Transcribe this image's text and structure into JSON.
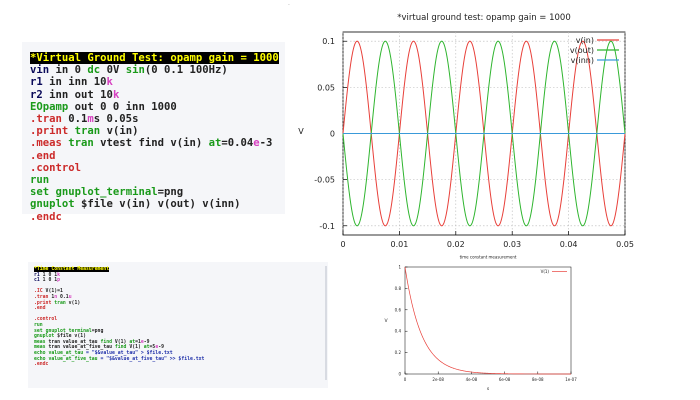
{
  "decor": {
    "dot": "·"
  },
  "code_block_1": {
    "lines": [
      [
        {
          "t": "*Virtual Ground Test: opamp gain = 1000",
          "c": "hl"
        }
      ],
      [
        {
          "t": "vin",
          "c": "id"
        },
        {
          "t": " in 0 ",
          "c": "txt"
        },
        {
          "t": "dc",
          "c": "kw"
        },
        {
          "t": " 0V ",
          "c": "txt"
        },
        {
          "t": "sin",
          "c": "kw"
        },
        {
          "t": "(0 0.1 100Hz)",
          "c": "txt"
        }
      ],
      [
        {
          "t": "r1",
          "c": "id"
        },
        {
          "t": " in inn 10",
          "c": "txt"
        },
        {
          "t": "k",
          "c": "mag"
        }
      ],
      [
        {
          "t": "r2",
          "c": "id"
        },
        {
          "t": " inn out 10",
          "c": "txt"
        },
        {
          "t": "k",
          "c": "mag"
        }
      ],
      [
        {
          "t": "EOpamp",
          "c": "kw"
        },
        {
          "t": " out 0 0 inn 1000",
          "c": "txt"
        }
      ],
      [
        {
          "t": ".tran",
          "c": "red"
        },
        {
          "t": " 0.1",
          "c": "txt"
        },
        {
          "t": "m",
          "c": "mag"
        },
        {
          "t": "s 0.05s",
          "c": "txt"
        }
      ],
      [
        {
          "t": ".print",
          "c": "red"
        },
        {
          "t": " ",
          "c": "txt"
        },
        {
          "t": "tran",
          "c": "kw"
        },
        {
          "t": " v(in)",
          "c": "txt"
        }
      ],
      [
        {
          "t": ".meas",
          "c": "red"
        },
        {
          "t": " ",
          "c": "txt"
        },
        {
          "t": "tran",
          "c": "kw"
        },
        {
          "t": " vtest find v(in) ",
          "c": "txt"
        },
        {
          "t": "at",
          "c": "kw"
        },
        {
          "t": "=0.04",
          "c": "txt"
        },
        {
          "t": "e",
          "c": "mag"
        },
        {
          "t": "-3",
          "c": "txt"
        }
      ],
      [
        {
          "t": ".end",
          "c": "red"
        }
      ],
      [
        {
          "t": ".control",
          "c": "red"
        }
      ],
      [
        {
          "t": "run",
          "c": "kw"
        }
      ],
      [
        {
          "t": "set",
          "c": "kw"
        },
        {
          "t": " ",
          "c": "txt"
        },
        {
          "t": "gnuplot_terminal",
          "c": "kw"
        },
        {
          "t": "=png",
          "c": "txt"
        }
      ],
      [
        {
          "t": "gnuplot",
          "c": "kw"
        },
        {
          "t": " $file v(in) v(out) v(inn)",
          "c": "txt"
        }
      ],
      [
        {
          "t": ".endc",
          "c": "red"
        }
      ]
    ]
  },
  "code_block_2": {
    "lines": [
      [
        {
          "t": "*Time Constant Measurement",
          "c": "hl"
        }
      ],
      [
        {
          "t": "r1",
          "c": "id"
        },
        {
          "t": " 1 0 1",
          "c": "txt"
        },
        {
          "t": "k",
          "c": "mag"
        }
      ],
      [
        {
          "t": "c1",
          "c": "id"
        },
        {
          "t": " 1 0 1",
          "c": "txt"
        },
        {
          "t": "p",
          "c": "mag"
        }
      ],
      [
        {
          "t": " ",
          "c": "txt"
        }
      ],
      [
        {
          "t": ".IC",
          "c": "red"
        },
        {
          "t": " V(1)=1",
          "c": "txt"
        }
      ],
      [
        {
          "t": ".tran",
          "c": "red"
        },
        {
          "t": " 1",
          "c": "txt"
        },
        {
          "t": "n",
          "c": "mag"
        },
        {
          "t": " 0.1",
          "c": "txt"
        },
        {
          "t": "u",
          "c": "mag"
        }
      ],
      [
        {
          "t": ".print",
          "c": "red"
        },
        {
          "t": " ",
          "c": "txt"
        },
        {
          "t": "tran",
          "c": "kw"
        },
        {
          "t": " v(1)",
          "c": "txt"
        }
      ],
      [
        {
          "t": ".end",
          "c": "red"
        }
      ],
      [
        {
          "t": " ",
          "c": "txt"
        }
      ],
      [
        {
          "t": ".control",
          "c": "red"
        }
      ],
      [
        {
          "t": "run",
          "c": "kw"
        }
      ],
      [
        {
          "t": "set",
          "c": "kw"
        },
        {
          "t": " ",
          "c": "txt"
        },
        {
          "t": "gnuplot_terminal",
          "c": "kw"
        },
        {
          "t": "=png",
          "c": "txt"
        }
      ],
      [
        {
          "t": "gnuplot",
          "c": "kw"
        },
        {
          "t": " $file v(1)",
          "c": "txt"
        }
      ],
      [
        {
          "t": "meas",
          "c": "kw"
        },
        {
          "t": " tran value_at_tau ",
          "c": "txt"
        },
        {
          "t": "find",
          "c": "kw"
        },
        {
          "t": " V(1) ",
          "c": "txt"
        },
        {
          "t": "at",
          "c": "kw"
        },
        {
          "t": "=1",
          "c": "txt"
        },
        {
          "t": "e",
          "c": "mag"
        },
        {
          "t": "-9",
          "c": "txt"
        }
      ],
      [
        {
          "t": "meas",
          "c": "kw"
        },
        {
          "t": " tran value_at_five_tau ",
          "c": "txt"
        },
        {
          "t": "find",
          "c": "kw"
        },
        {
          "t": " V(1) ",
          "c": "txt"
        },
        {
          "t": "at",
          "c": "kw"
        },
        {
          "t": "=5",
          "c": "txt"
        },
        {
          "t": "e",
          "c": "mag"
        },
        {
          "t": "-9",
          "c": "txt"
        }
      ],
      [
        {
          "t": "echo",
          "c": "kw"
        },
        {
          "t": " ",
          "c": "txt"
        },
        {
          "t": "value_at_tau",
          "c": "kw"
        },
        {
          "t": " = \"$&value_at_tau\" > $file.txt",
          "c": "blue"
        }
      ],
      [
        {
          "t": "echo",
          "c": "kw"
        },
        {
          "t": " ",
          "c": "txt"
        },
        {
          "t": "value_at_five_tau",
          "c": "kw"
        },
        {
          "t": " = \"$&value_at_five_tau\" >> $file.txt",
          "c": "blue"
        }
      ],
      [
        {
          "t": ".endc",
          "c": "red"
        }
      ]
    ]
  },
  "chart_data": [
    {
      "type": "line",
      "title": "*virtual ground test: opamp gain = 1000",
      "xlabel": "",
      "ylabel": "V",
      "xlim": [
        0,
        0.05
      ],
      "ylim": [
        -0.11,
        0.11
      ],
      "x_ticks": [
        0,
        0.01,
        0.02,
        0.03,
        0.04,
        0.05
      ],
      "x_tick_labels": [
        "0",
        "0.01",
        "0.02",
        "0.03",
        "0.04",
        "0.05"
      ],
      "y_ticks": [
        0.1,
        0.05,
        0,
        -0.05,
        -0.1
      ],
      "y_tick_labels": [
        "0.1",
        "0.05",
        "0",
        "-0.05",
        "-0.1"
      ],
      "grid": true,
      "legend": "top-right",
      "series": [
        {
          "name": "v(in)",
          "color": "#e8403a",
          "function": "0.1*sin(2*pi*100*t)"
        },
        {
          "name": "v(out)",
          "color": "#2fb52f",
          "function": "-0.1*sin(2*pi*100*t)"
        },
        {
          "name": "v(inn)",
          "color": "#3a9ad9",
          "function": "0"
        }
      ]
    },
    {
      "type": "line",
      "title": "time constant measurement",
      "xlabel": "s",
      "ylabel": "V",
      "xlim": [
        0,
        1e-07
      ],
      "ylim": [
        0,
        1
      ],
      "x_ticks": [
        0,
        2e-08,
        4e-08,
        6e-08,
        8e-08,
        1e-07
      ],
      "x_tick_labels": [
        "0",
        "2e-08",
        "4e-08",
        "6e-08",
        "8e-08",
        "1e-07"
      ],
      "y_ticks": [
        0,
        0.2,
        0.4,
        0.6,
        0.8,
        1
      ],
      "y_tick_labels": [
        "0",
        "0.2",
        "0.4",
        "0.6",
        "0.8",
        "1"
      ],
      "grid": false,
      "legend": "top-right",
      "series": [
        {
          "name": "V(1)",
          "color": "#e8403a",
          "function": "exp(-t/1e-9)"
        }
      ]
    }
  ]
}
